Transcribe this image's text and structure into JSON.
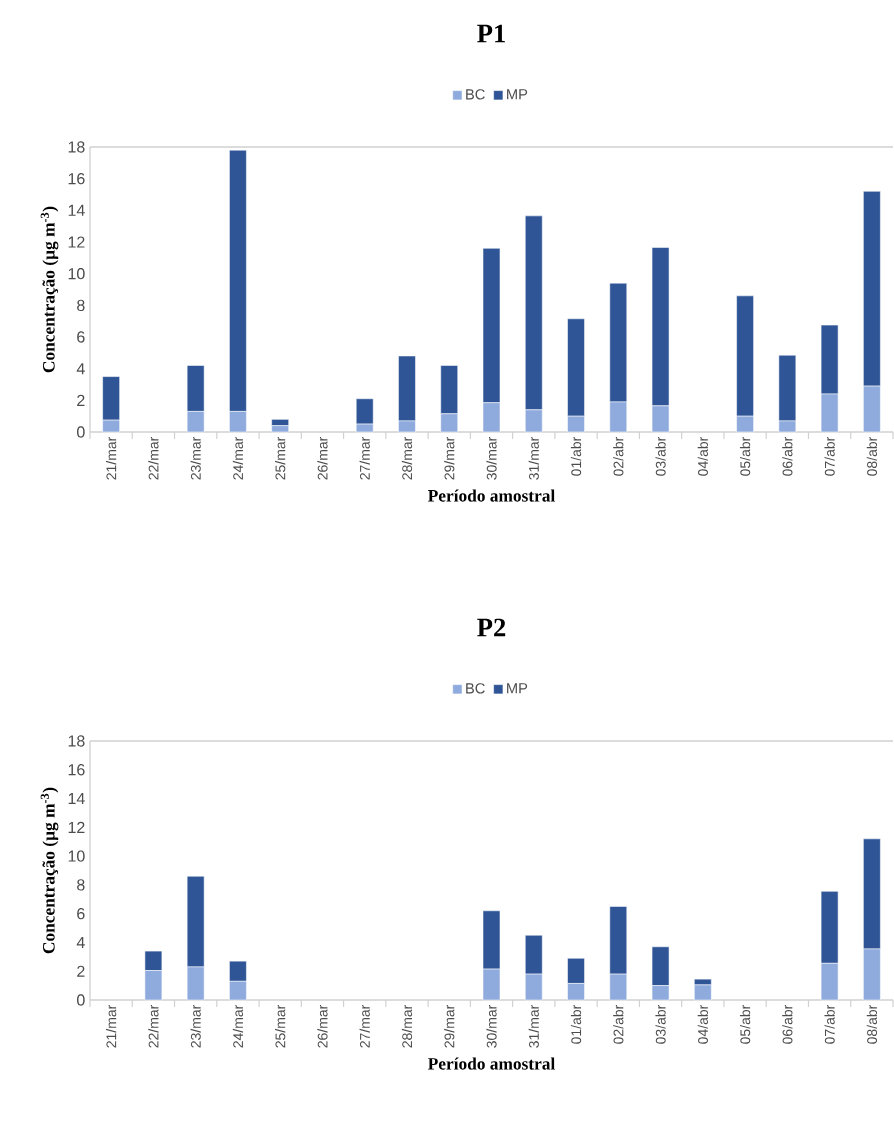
{
  "chart_data": [
    {
      "type": "bar",
      "title": "P1",
      "xlabel": "Período amostral",
      "ylabel": "Concentração (µg m$^{-3}$)",
      "stacked": true,
      "legend": "top",
      "categories": [
        "21/mar",
        "22/mar",
        "23/mar",
        "24/mar",
        "25/mar",
        "26/mar",
        "27/mar",
        "28/mar",
        "29/mar",
        "30/mar",
        "31/mar",
        "01/abr",
        "02/abr",
        "03/abr",
        "04/abr",
        "05/abr",
        "06/abr",
        "07/abr",
        "08/abr"
      ],
      "series": [
        {
          "name": "BC",
          "color": "#8faadc",
          "values": [
            0.75,
            null,
            1.3,
            1.3,
            0.4,
            null,
            0.5,
            0.7,
            1.15,
            1.85,
            1.4,
            1.0,
            1.9,
            1.65,
            null,
            1.0,
            0.7,
            2.4,
            2.9
          ]
        },
        {
          "name": "MP",
          "color": "#2f5597",
          "values": [
            2.75,
            null,
            2.9,
            16.5,
            0.4,
            null,
            1.6,
            4.1,
            3.05,
            9.75,
            12.25,
            6.15,
            7.5,
            10.0,
            null,
            7.6,
            4.15,
            4.35,
            12.3
          ]
        }
      ],
      "ylim": [
        0,
        18
      ],
      "yticks": [
        0,
        2,
        4,
        6,
        8,
        10,
        12,
        14,
        16,
        18
      ]
    },
    {
      "type": "bar",
      "title": "P2",
      "xlabel": "Período amostral",
      "ylabel": "Concentração (µg m$^{-3}$)",
      "stacked": true,
      "legend": "top",
      "categories": [
        "21/mar",
        "22/mar",
        "23/mar",
        "24/mar",
        "25/mar",
        "26/mar",
        "27/mar",
        "28/mar",
        "29/mar",
        "30/mar",
        "31/mar",
        "01/abr",
        "02/abr",
        "03/abr",
        "04/abr",
        "05/abr",
        "06/abr",
        "07/abr",
        "08/abr"
      ],
      "series": [
        {
          "name": "BC",
          "color": "#8faadc",
          "values": [
            null,
            2.05,
            2.3,
            1.3,
            null,
            null,
            null,
            null,
            null,
            2.15,
            1.8,
            1.15,
            1.8,
            1.0,
            1.05,
            null,
            null,
            2.55,
            3.55
          ]
        },
        {
          "name": "MP",
          "color": "#2f5597",
          "values": [
            null,
            1.35,
            6.3,
            1.4,
            null,
            null,
            null,
            null,
            null,
            4.05,
            2.7,
            1.75,
            4.7,
            2.7,
            0.4,
            null,
            null,
            5.0,
            7.65
          ]
        }
      ],
      "ylim": [
        0,
        18
      ],
      "yticks": [
        0,
        2,
        4,
        6,
        8,
        10,
        12,
        14,
        16,
        18
      ]
    }
  ]
}
